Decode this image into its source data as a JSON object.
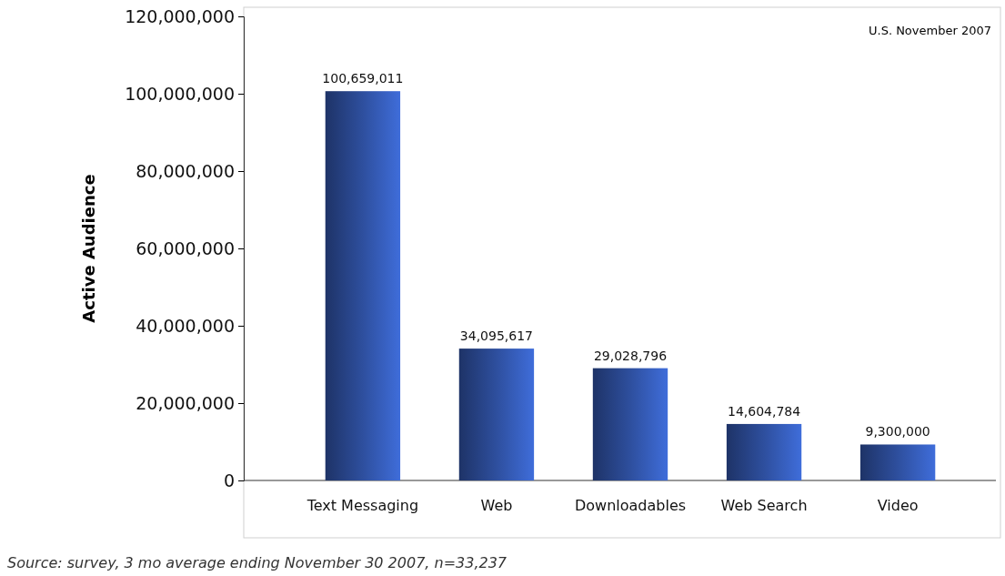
{
  "chart_data": {
    "type": "bar",
    "ylabel": "Active Audience",
    "categories": [
      "Text Messaging",
      "Web",
      "Downloadables",
      "Web Search",
      "Video"
    ],
    "values": [
      100659011,
      34095617,
      29028796,
      14604784,
      9300000
    ],
    "color": "#2e4f9e",
    "ylim": [
      0,
      120000000
    ],
    "yticks": [
      {
        "value": 0,
        "label": "0"
      },
      {
        "value": 20000000,
        "label": "20,000,000"
      },
      {
        "value": 40000000,
        "label": "40,000,000"
      },
      {
        "value": 60000000,
        "label": "60,000,000"
      },
      {
        "value": 80000000,
        "label": "80,000,000"
      },
      {
        "value": 100000000,
        "label": "100,000,000"
      },
      {
        "value": 120000000,
        "label": "120,000,000"
      }
    ],
    "value_labels": [
      "100,659,011",
      "34,095,617",
      "29,028,796",
      "14,604,784",
      "9,300,000"
    ],
    "grid": false,
    "annotations": [
      "U.S. November 2007",
      "Source: survey, 3 mo average ending November 30 2007, n=33,237"
    ]
  }
}
